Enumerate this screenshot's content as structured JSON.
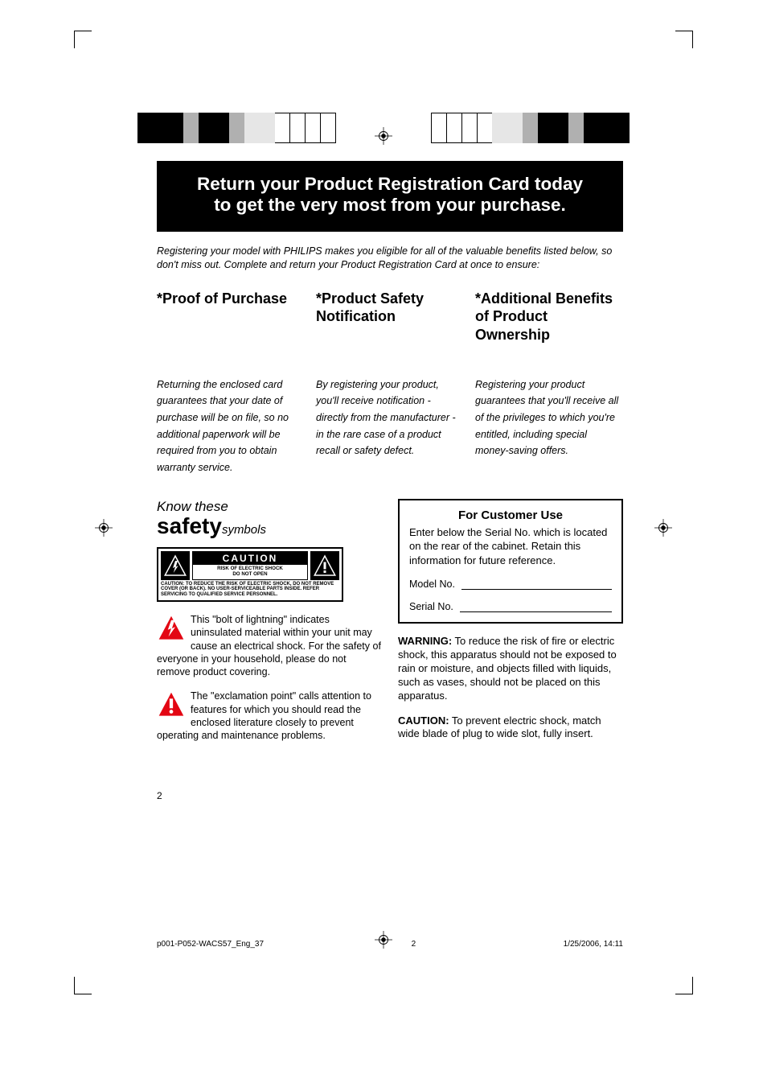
{
  "crop_color": "#000000",
  "top_bar_left_colors": [
    "#000000",
    "#000000",
    "#000000",
    "#b0b0b0",
    "#000000",
    "#000000",
    "#b0b0b0",
    "#e6e6e6",
    "#e6e6e6",
    "#ffffff",
    "#ffffff",
    "#ffffff",
    "#ffffff"
  ],
  "top_bar_right_colors": [
    "#ffffff",
    "#ffffff",
    "#ffffff",
    "#ffffff",
    "#e6e6e6",
    "#e6e6e6",
    "#b0b0b0",
    "#000000",
    "#000000",
    "#b0b0b0",
    "#000000",
    "#000000",
    "#000000"
  ],
  "banner": {
    "line1": "Return your Product Registration Card today",
    "line2": "to get the very most from your purchase."
  },
  "intro": "Registering your model with PHILIPS makes you eligible for all of the valuable benefits listed below, so don't miss out. Complete and return your Product Registration Card at once to ensure:",
  "columns": [
    {
      "title": "*Proof of Purchase",
      "body": "Returning the enclosed card guarantees that your date of purchase will be on file, so no additional paperwork will be required from you to obtain warranty service."
    },
    {
      "title": "*Product Safety Notification",
      "body": "By registering your product, you'll receive notification - directly from the manufacturer - in the rare case of a product recall or safety defect."
    },
    {
      "title": "*Additional Benefits of Product Ownership",
      "body": "Registering your product guarantees that you'll receive all of the privileges to which you're entitled, including special money-saving offers."
    }
  ],
  "safety": {
    "know": "Know these",
    "safety": "safety",
    "symbols": "symbols",
    "caution_label": "CAUTION",
    "caution_sub": "RISK OF ELECTRIC SHOCK\nDO NOT OPEN",
    "caution_fine": "CAUTION: TO REDUCE THE RISK OF ELECTRIC SHOCK, DO NOT REMOVE COVER (OR BACK). NO USER-SERVICEABLE PARTS INSIDE. REFER SERVICING TO QUALIFIED SERVICE PERSONNEL.",
    "bolt_para": "This \"bolt of lightning\" indicates uninsulated material within your unit may cause an electrical shock. For the safety of everyone in your household, please do not remove product covering.",
    "excl_para": "The \"exclamation point\" calls attention to features for which you should read the enclosed literature closely to prevent operating and maintenance problems."
  },
  "customer": {
    "title": "For Customer Use",
    "body": "Enter below the Serial No. which is located on the rear of the cabinet. Retain this information for future reference.",
    "model_label": "Model No.",
    "serial_label": "Serial No."
  },
  "warning": {
    "lead": "WARNING:",
    "body": " To reduce the risk of fire or electric shock, this apparatus should not be exposed to rain or moisture, and objects filled with liquids, such as vases, should not be placed on this apparatus."
  },
  "caution_plug": {
    "lead": "CAUTION:",
    "body": " To prevent electric shock, match wide blade of plug to wide slot, fully insert."
  },
  "page_number": "2",
  "footer": {
    "file": "p001-P052-WACS57_Eng_37",
    "page": "2",
    "date": "1/25/2006, 14:11"
  },
  "triangle_bolt_color": "#e30613",
  "triangle_excl_color": "#e30613"
}
